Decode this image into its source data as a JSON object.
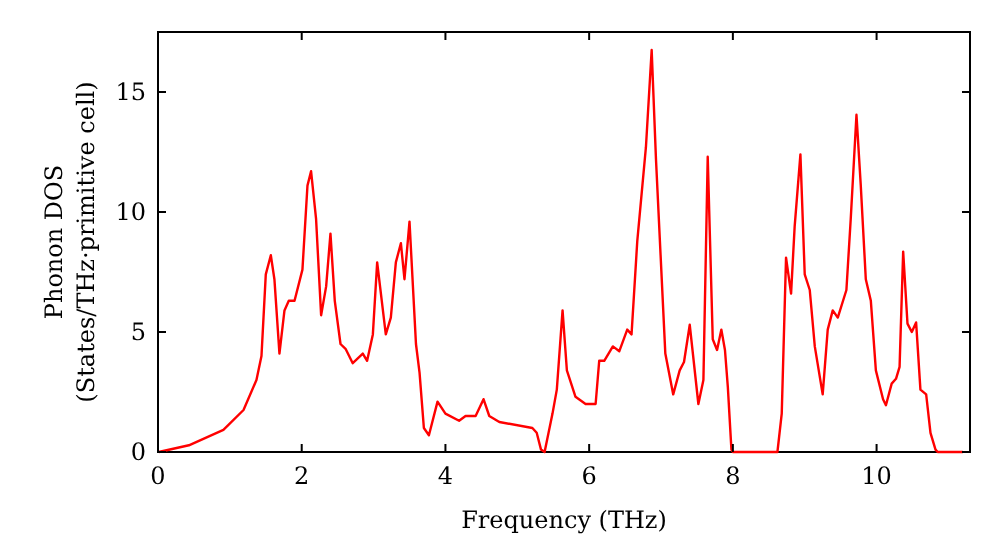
{
  "chart_data": {
    "type": "line",
    "xlabel": "Frequency (THz)",
    "ylabel": "Phonon DOS\n(States/THz·primitive cell)",
    "xlim": [
      0,
      11.3
    ],
    "ylim": [
      0,
      17.5
    ],
    "xticks": [
      0,
      2,
      4,
      6,
      8,
      10
    ],
    "yticks": [
      0,
      5,
      10,
      15
    ],
    "grid": false,
    "marker": "none",
    "line_style": "solid",
    "series": [
      {
        "color": "#ff0000",
        "x": [
          0.01,
          0.43,
          0.91,
          1.19,
          1.37,
          1.44,
          1.5,
          1.57,
          1.62,
          1.69,
          1.76,
          1.82,
          1.9,
          2.01,
          2.08,
          2.13,
          2.2,
          2.27,
          2.34,
          2.4,
          2.46,
          2.54,
          2.61,
          2.71,
          2.85,
          2.91,
          2.99,
          3.05,
          3.17,
          3.24,
          3.31,
          3.38,
          3.43,
          3.5,
          3.59,
          3.64,
          3.7,
          3.77,
          3.89,
          4.0,
          4.19,
          4.28,
          4.42,
          4.53,
          4.61,
          4.75,
          5.21,
          5.27,
          5.33,
          5.38,
          5.49,
          5.55,
          5.63,
          5.69,
          5.81,
          5.95,
          6.09,
          6.14,
          6.21,
          6.33,
          6.42,
          6.53,
          6.59,
          6.67,
          6.79,
          6.87,
          6.93,
          7.06,
          7.17,
          7.26,
          7.32,
          7.4,
          7.52,
          7.59,
          7.65,
          7.72,
          7.78,
          7.84,
          7.89,
          7.93,
          7.98,
          8.0,
          8.62,
          8.68,
          8.74,
          8.81,
          8.86,
          8.94,
          9.0,
          9.07,
          9.14,
          9.25,
          9.32,
          9.39,
          9.46,
          9.58,
          9.64,
          9.72,
          9.78,
          9.85,
          9.92,
          9.99,
          10.09,
          10.13,
          10.21,
          10.27,
          10.32,
          10.37,
          10.43,
          10.49,
          10.55,
          10.61,
          10.69,
          10.75,
          10.82,
          10.85,
          11.2
        ],
        "values": [
          0,
          0.28,
          0.92,
          1.75,
          3.0,
          4.0,
          7.4,
          8.2,
          7.2,
          4.1,
          5.9,
          6.3,
          6.3,
          7.6,
          11.1,
          11.7,
          9.7,
          5.7,
          6.9,
          9.1,
          6.3,
          4.5,
          4.3,
          3.7,
          4.1,
          3.8,
          4.9,
          7.9,
          4.9,
          5.6,
          7.9,
          8.7,
          7.2,
          9.6,
          4.5,
          3.3,
          1.0,
          0.7,
          2.1,
          1.6,
          1.3,
          1.5,
          1.5,
          2.2,
          1.5,
          1.25,
          1.0,
          0.8,
          0.1,
          0,
          1.6,
          2.6,
          5.9,
          3.4,
          2.3,
          2.0,
          2.0,
          3.8,
          3.8,
          4.4,
          4.2,
          5.1,
          4.9,
          8.8,
          12.7,
          16.75,
          12.2,
          4.1,
          2.4,
          3.4,
          3.75,
          5.3,
          2.0,
          3.0,
          12.3,
          4.7,
          4.25,
          5.1,
          4.25,
          2.7,
          0.1,
          0,
          0,
          1.6,
          8.1,
          6.6,
          9.4,
          12.4,
          7.4,
          6.75,
          4.4,
          2.4,
          5.1,
          5.9,
          5.6,
          6.75,
          9.7,
          14.05,
          11.1,
          7.2,
          6.3,
          3.4,
          2.2,
          1.95,
          2.85,
          3.05,
          3.55,
          8.35,
          5.35,
          5.0,
          5.4,
          2.6,
          2.4,
          0.8,
          0.1,
          0,
          0
        ]
      }
    ]
  }
}
